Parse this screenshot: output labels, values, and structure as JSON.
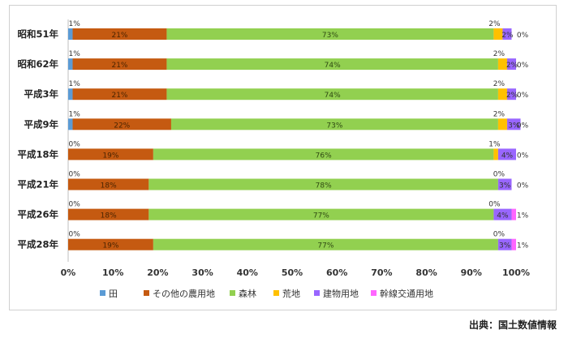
{
  "chart_data": {
    "type": "bar",
    "orientation": "horizontal",
    "stacked": "percent",
    "categories": [
      "昭和51年",
      "昭和62年",
      "平成3年",
      "平成9年",
      "平成18年",
      "平成21年",
      "平成26年",
      "平成28年"
    ],
    "series": [
      {
        "name": "田",
        "color": "#5b9bd5",
        "values": [
          1,
          1,
          1,
          1,
          0,
          0,
          0,
          0
        ]
      },
      {
        "name": "その他の農用地",
        "color": "#c55a11",
        "values": [
          21,
          21,
          21,
          22,
          19,
          18,
          18,
          19
        ]
      },
      {
        "name": "森林",
        "color": "#92d050",
        "values": [
          73,
          74,
          74,
          73,
          76,
          78,
          77,
          77
        ]
      },
      {
        "name": "荒地",
        "color": "#ffc000",
        "values": [
          2,
          2,
          2,
          2,
          1,
          0,
          0,
          0
        ]
      },
      {
        "name": "建物用地",
        "color": "#9966ff",
        "values": [
          2,
          2,
          2,
          3,
          4,
          3,
          4,
          3
        ]
      },
      {
        "name": "幹線交通用地",
        "color": "#ff66ff",
        "values": [
          0,
          0,
          0,
          0,
          0,
          0,
          1,
          1
        ]
      }
    ],
    "xlim": [
      0,
      100
    ],
    "xticks": [
      "0%",
      "10%",
      "20%",
      "30%",
      "40%",
      "50%",
      "60%",
      "70%",
      "80%",
      "90%",
      "100%"
    ],
    "legend_position": "bottom",
    "grid": false
  },
  "source_note": "出典：国土数値情報"
}
